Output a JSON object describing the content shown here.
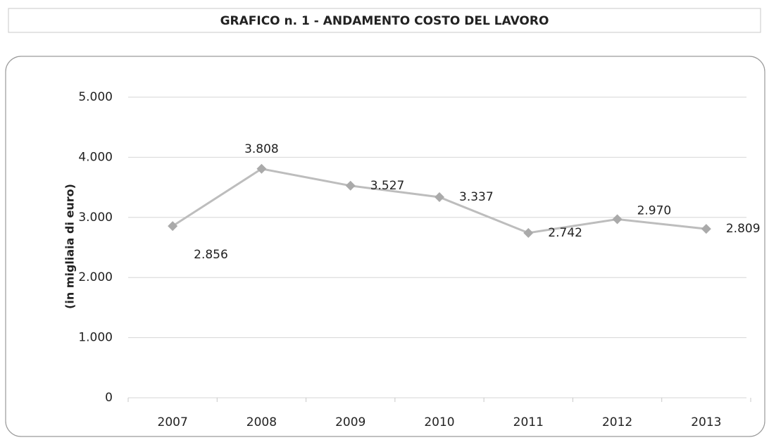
{
  "chart_data": {
    "type": "line",
    "title": "GRAFICO n. 1  - ANDAMENTO COSTO DEL LAVORO",
    "y_axis_label": "(in migliaia di euro)",
    "categories": [
      "2007",
      "2008",
      "2009",
      "2010",
      "2011",
      "2012",
      "2013"
    ],
    "values": [
      2856,
      3808,
      3527,
      3337,
      2742,
      2970,
      2809
    ],
    "value_labels": [
      "2.856",
      "3.808",
      "3.527",
      "3.337",
      "2.742",
      "2.970",
      "2.809"
    ],
    "color": "#bdbdbd",
    "ylim": [
      0,
      5000
    ],
    "yticks": [
      {
        "value": 0,
        "label": "0"
      },
      {
        "value": 1000,
        "label": "1.000"
      },
      {
        "value": 2000,
        "label": "2.000"
      },
      {
        "value": 3000,
        "label": "3.000"
      },
      {
        "value": 4000,
        "label": "4.000"
      },
      {
        "value": 5000,
        "label": "5.000"
      }
    ],
    "grid": true
  }
}
